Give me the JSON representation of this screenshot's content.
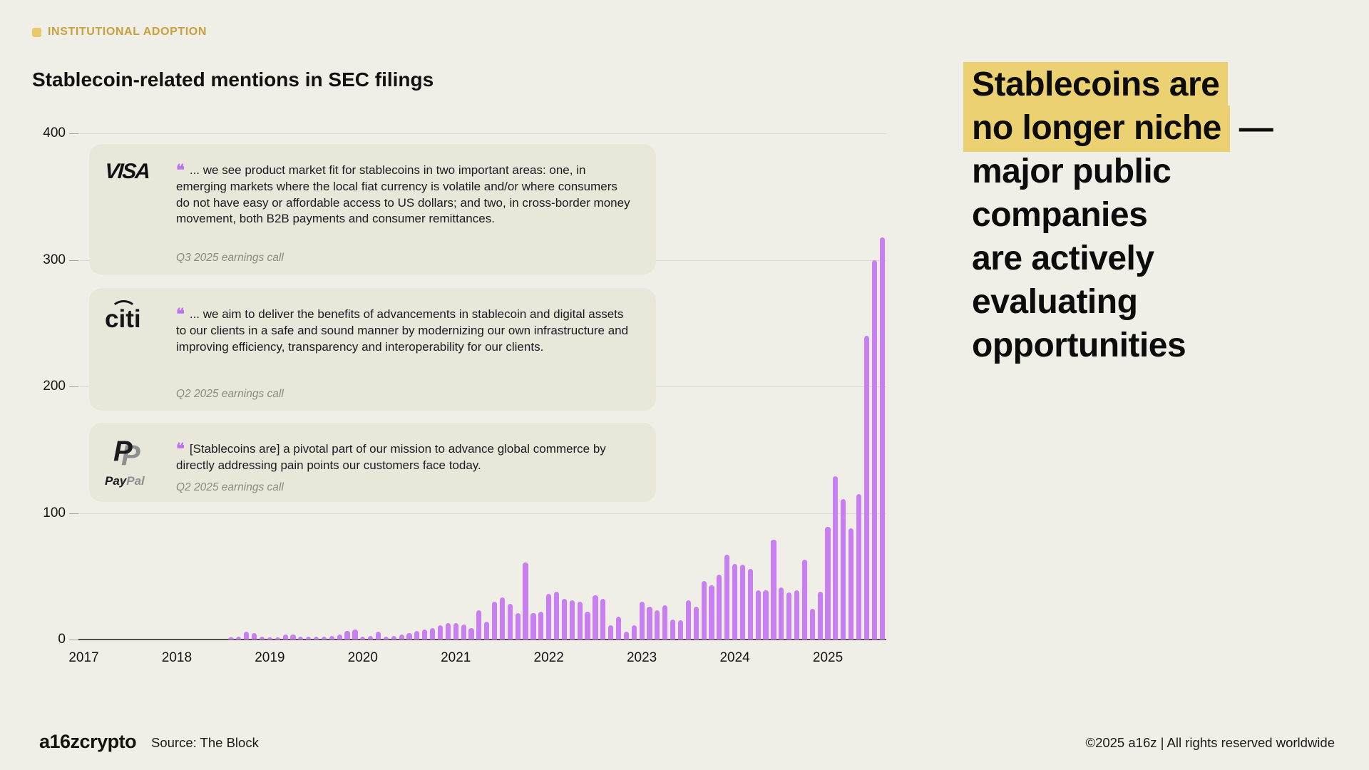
{
  "tag": {
    "label": "INSTITUTIONAL ADOPTION"
  },
  "title": "Stablecoin-related mentions in SEC filings",
  "ui": {
    "quote_mark": "❝"
  },
  "headline": {
    "highlight_color": "#ecd173",
    "full_text": "Stablecoins are no longer niche — major public companies are actively evaluating opportunities",
    "lines": [
      {
        "text": "Stablecoins are",
        "highlight": true,
        "suffix": ""
      },
      {
        "text": "no longer niche",
        "highlight": true,
        "suffix": " —"
      },
      {
        "text": "major public",
        "highlight": false,
        "suffix": ""
      },
      {
        "text": "companies",
        "highlight": false,
        "suffix": ""
      },
      {
        "text": "are actively",
        "highlight": false,
        "suffix": ""
      },
      {
        "text": "evaluating",
        "highlight": false,
        "suffix": ""
      },
      {
        "text": "opportunities",
        "highlight": false,
        "suffix": ""
      }
    ]
  },
  "quotes": [
    {
      "company": "VISA",
      "text": "... we see product market fit for stablecoins in two important areas: one, in emerging markets where the local fiat currency is volatile and/or where consumers do not have easy or affordable access to US dollars; and two, in cross-border money movement, both B2B payments and consumer remittances.",
      "attribution": "Q3 2025 earnings call"
    },
    {
      "company": "citi",
      "text": "... we aim to deliver the benefits of advancements in stablecoin and digital assets to our clients in a safe and sound manner by modernizing our own infrastructure and improving efficiency, transparency and interoperability for our clients.",
      "attribution": "Q2 2025 earnings call"
    },
    {
      "company": "PayPal",
      "logo_parts": {
        "mark": "P",
        "pay": "Pay",
        "pal": "Pal"
      },
      "text": "[Stablecoins are] a pivotal part of our mission to advance global commerce by directly addressing pain points our customers face today.",
      "attribution": "Q2 2025 earnings call"
    }
  ],
  "chart_data": {
    "type": "bar",
    "title": "Stablecoin-related mentions in SEC filings",
    "xlabel": "",
    "ylabel": "",
    "ylim": [
      0,
      400
    ],
    "y_ticks": [
      0,
      100,
      200,
      300,
      400
    ],
    "x_tick_labels": [
      "2017",
      "2018",
      "2019",
      "2020",
      "2021",
      "2022",
      "2023",
      "2024",
      "2025"
    ],
    "frequency": "monthly",
    "x_start": "2017-01",
    "x_end": "2025-08",
    "grid": true,
    "legend": false,
    "bar_color": "#c97ef1",
    "values": [
      0,
      0,
      0,
      0,
      0,
      0,
      0,
      0,
      0,
      0,
      0,
      0,
      0,
      0,
      0,
      0,
      0,
      0,
      0,
      1,
      2,
      6,
      5,
      2,
      1,
      1,
      4,
      4,
      2,
      2,
      2,
      2,
      3,
      4,
      7,
      8,
      2,
      3,
      6,
      2,
      3,
      4,
      5,
      7,
      8,
      9,
      11,
      13,
      13,
      12,
      9,
      23,
      14,
      30,
      33,
      28,
      21,
      61,
      21,
      22,
      36,
      38,
      32,
      31,
      30,
      22,
      35,
      32,
      11,
      18,
      6,
      11,
      30,
      26,
      23,
      27,
      16,
      15,
      31,
      26,
      46,
      43,
      51,
      67,
      60,
      59,
      56,
      39,
      39,
      79,
      41,
      37,
      39,
      63,
      24,
      38,
      89,
      129,
      111,
      88,
      115,
      240,
      300,
      318
    ]
  },
  "footer": {
    "logo": "a16zcrypto",
    "source": "Source: The Block",
    "copyright": "©2025 a16z | All rights reserved worldwide"
  }
}
